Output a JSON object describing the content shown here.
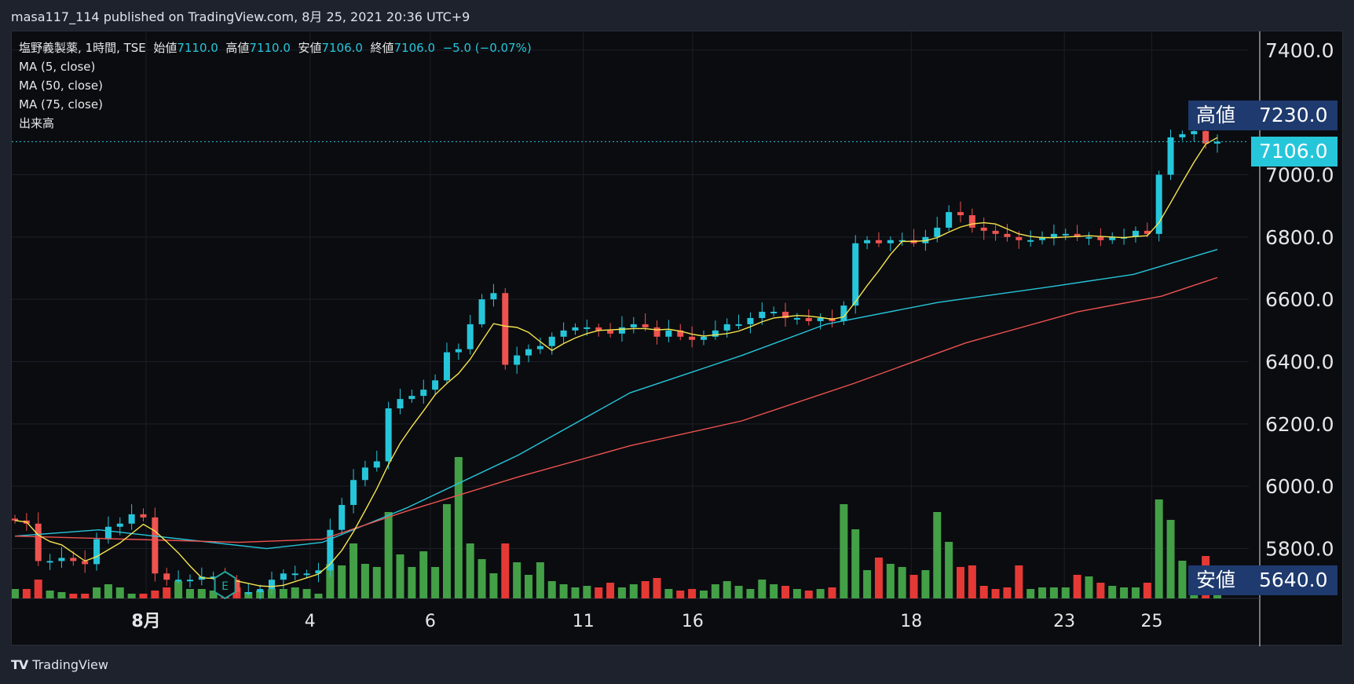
{
  "header": {
    "publisher_line": "masa117_114 published on TradingView.com, 8月 25, 2021 20:36 UTC+9"
  },
  "legend": {
    "symbol": "塩野義製薬, 1時間, TSE",
    "open_label": "始値",
    "open": "7110.0",
    "high_label": "高値",
    "high": "7110.0",
    "low_label": "安値",
    "low": "7106.0",
    "close_label": "終値",
    "close": "7106.0",
    "change": "−5.0 (−0.07%)",
    "studies": [
      "MA (5, close)",
      "MA (50, close)",
      "MA (75, close)",
      "出来高"
    ]
  },
  "price_tags": {
    "high_label": "高値",
    "high_value": "7230.0",
    "last_value": "7106.0",
    "low_label": "安値",
    "low_value": "5640.0"
  },
  "footer": {
    "brand": "TradingView",
    "logo": "TV"
  },
  "earnings_marker": "E",
  "colors": {
    "up": "#26c6da",
    "down": "#ef5350",
    "ma5": "#f5e44d",
    "ma50": "#26c6da",
    "ma75": "#ef5350",
    "vol_up": "#43a047",
    "vol_down": "#e53935",
    "high_tag_bg": "#1e3a6e",
    "last_tag_bg": "#26c6da"
  },
  "chart_data": {
    "type": "candlestick",
    "y_ticks": [
      "5800.0",
      "6000.0",
      "6200.0",
      "6400.0",
      "6600.0",
      "6800.0",
      "7000.0",
      "7400.0"
    ],
    "ylim": [
      5640,
      7460
    ],
    "x_ticks": [
      "8月",
      "4",
      "6",
      "11",
      "16",
      "18",
      "23",
      "25"
    ],
    "high": 7230,
    "low": 5640,
    "last": 7106,
    "close_series": [
      5890,
      5880,
      5760,
      5760,
      5770,
      5760,
      5750,
      5830,
      5870,
      5880,
      5910,
      5900,
      5720,
      5700,
      5700,
      5700,
      5710,
      5710,
      5700,
      5660,
      5660,
      5670,
      5700,
      5720,
      5720,
      5720,
      5730,
      5860,
      5940,
      6020,
      6060,
      6080,
      6250,
      6280,
      6290,
      6310,
      6340,
      6430,
      6440,
      6520,
      6600,
      6620,
      6390,
      6420,
      6440,
      6450,
      6480,
      6500,
      6510,
      6510,
      6500,
      6490,
      6510,
      6520,
      6510,
      6480,
      6500,
      6480,
      6470,
      6480,
      6500,
      6520,
      6520,
      6540,
      6560,
      6560,
      6540,
      6540,
      6530,
      6540,
      6530,
      6580,
      6780,
      6790,
      6780,
      6790,
      6790,
      6780,
      6800,
      6830,
      6880,
      6870,
      6830,
      6820,
      6810,
      6800,
      6790,
      6790,
      6800,
      6810,
      6810,
      6800,
      6800,
      6790,
      6800,
      6800,
      6820,
      6810,
      7000,
      7120,
      7130,
      7140,
      7100,
      7106
    ],
    "ma50_anchor": [
      [
        0,
        5840
      ],
      [
        15,
        5860
      ],
      [
        25,
        5840
      ],
      [
        45,
        5800
      ],
      [
        55,
        5820
      ],
      [
        70,
        5930
      ],
      [
        90,
        6100
      ],
      [
        110,
        6300
      ],
      [
        130,
        6420
      ],
      [
        145,
        6520
      ],
      [
        165,
        6590
      ],
      [
        185,
        6640
      ],
      [
        200,
        6680
      ],
      [
        215,
        6760
      ]
    ],
    "ma75_anchor": [
      [
        0,
        5840
      ],
      [
        20,
        5830
      ],
      [
        40,
        5820
      ],
      [
        55,
        5830
      ],
      [
        70,
        5920
      ],
      [
        90,
        6030
      ],
      [
        110,
        6130
      ],
      [
        130,
        6210
      ],
      [
        150,
        6330
      ],
      [
        170,
        6460
      ],
      [
        190,
        6560
      ],
      [
        205,
        6610
      ],
      [
        215,
        6670
      ]
    ],
    "volume": [
      12,
      12,
      24,
      10,
      8,
      6,
      6,
      14,
      18,
      14,
      6,
      6,
      10,
      14,
      22,
      12,
      12,
      10,
      14,
      14,
      8,
      10,
      12,
      12,
      14,
      12,
      6,
      44,
      42,
      70,
      44,
      40,
      110,
      56,
      40,
      60,
      40,
      120,
      180,
      70,
      50,
      32,
      70,
      46,
      30,
      46,
      22,
      18,
      14,
      16,
      14,
      20,
      14,
      18,
      22,
      26,
      12,
      10,
      12,
      10,
      18,
      22,
      16,
      12,
      24,
      18,
      16,
      12,
      10,
      12,
      14,
      120,
      88,
      36,
      52,
      44,
      40,
      30,
      36,
      110,
      72,
      40,
      42,
      16,
      12,
      14,
      42,
      12,
      14,
      14,
      14,
      30,
      28,
      20,
      16,
      14,
      14,
      20,
      126,
      100,
      48,
      40,
      54,
      30
    ]
  }
}
